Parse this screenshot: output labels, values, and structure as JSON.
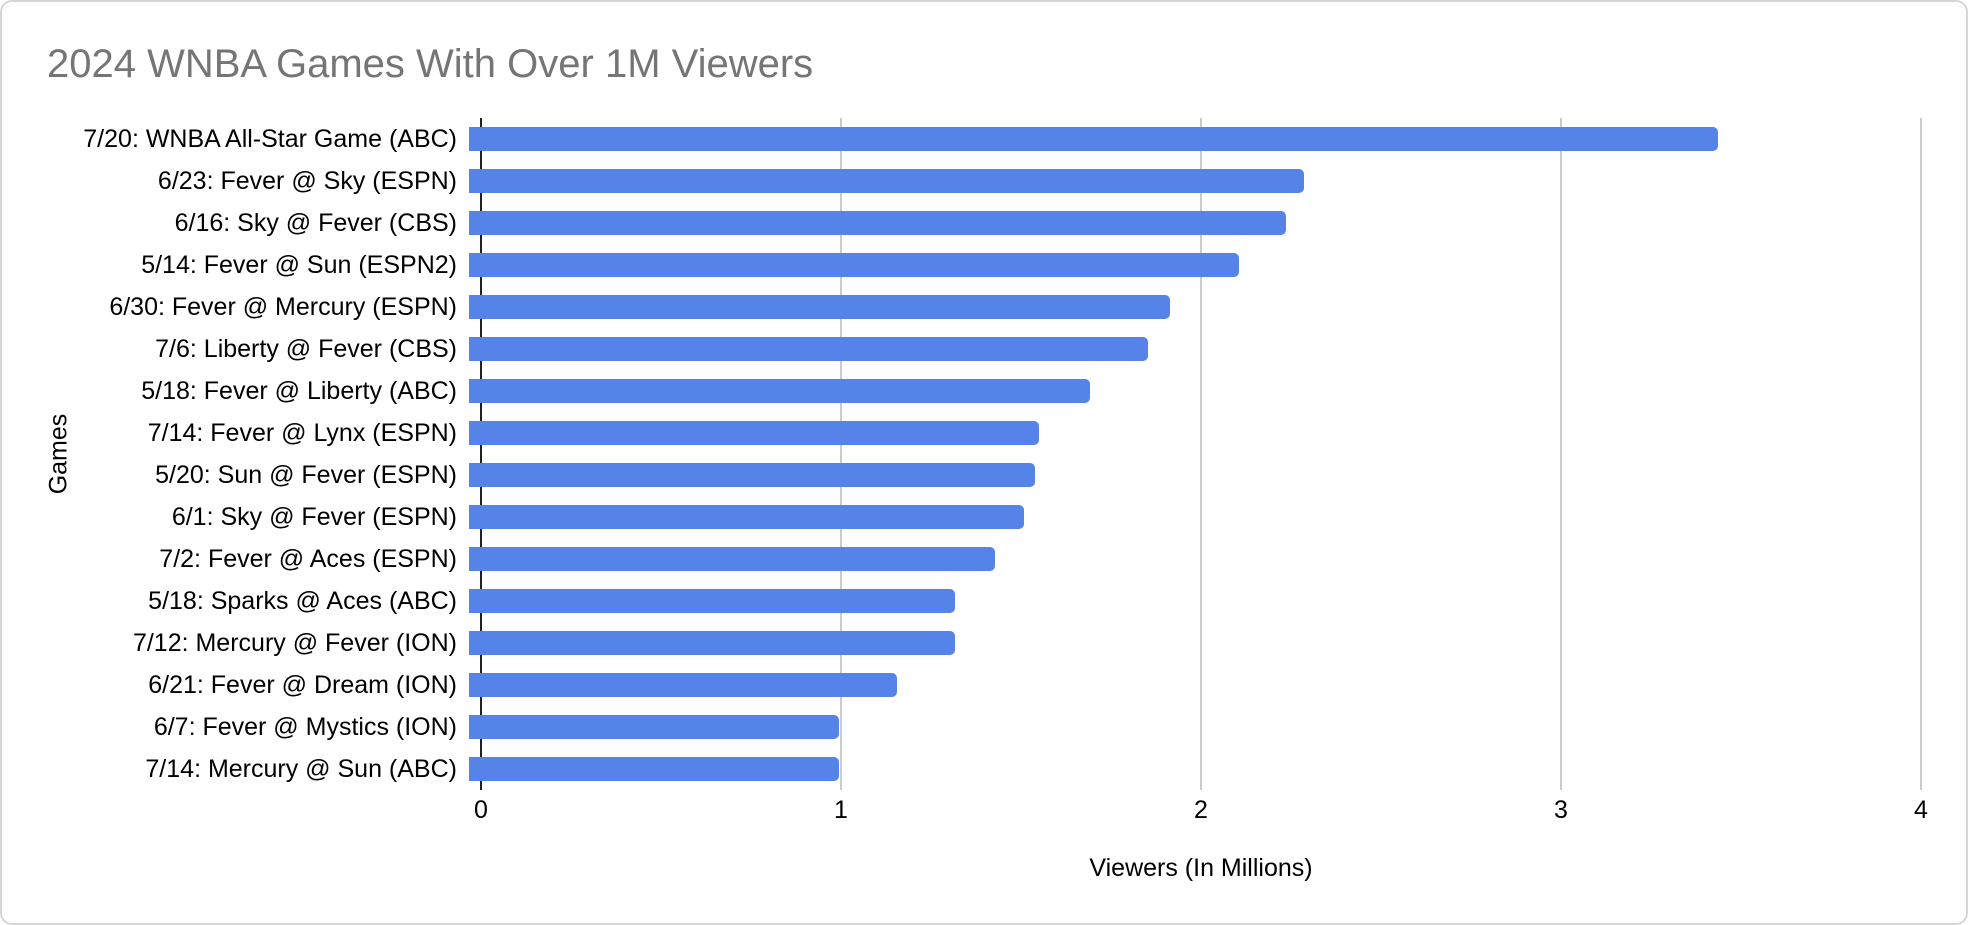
{
  "window": {
    "background": "#ffffff",
    "border_color": "#d6d6d6"
  },
  "chart_data": {
    "type": "bar",
    "orientation": "horizontal",
    "title": "2024 WNBA Games With Over 1M Viewers",
    "title_color": "#757575",
    "xlabel": "Viewers (In Millions)",
    "ylabel": "Games",
    "xlim": [
      0,
      4
    ],
    "xticks": [
      "0",
      "1",
      "2",
      "3",
      "4"
    ],
    "grid": true,
    "legend": false,
    "bar_color": "#5583e8",
    "gridline_color": "#cccccc",
    "axis_color": "#212121",
    "categories": [
      "7/20: WNBA All-Star Game (ABC)",
      "6/23: Fever @ Sky (ESPN)",
      "6/16: Sky @ Fever (CBS)",
      "5/14: Fever @ Sun (ESPN2)",
      "6/30: Fever @ Mercury (ESPN)",
      "7/6: Liberty @ Fever (CBS)",
      "5/18: Fever @ Liberty (ABC)",
      "7/14: Fever @ Lynx (ESPN)",
      "5/20: Sun @ Fever (ESPN)",
      "6/1: Sky @ Fever (ESPN)",
      "7/2: Fever @ Aces (ESPN)",
      "5/18: Sparks @ Aces (ABC)",
      "7/12: Mercury @ Fever (ION)",
      "6/21: Fever @ Dream (ION)",
      "6/7: Fever @ Mystics (ION)",
      "7/14: Mercury @ Sun (ABC)"
    ],
    "values": [
      3.44,
      2.3,
      2.25,
      2.12,
      1.93,
      1.87,
      1.71,
      1.57,
      1.56,
      1.53,
      1.45,
      1.34,
      1.34,
      1.18,
      1.02,
      1.02
    ]
  }
}
